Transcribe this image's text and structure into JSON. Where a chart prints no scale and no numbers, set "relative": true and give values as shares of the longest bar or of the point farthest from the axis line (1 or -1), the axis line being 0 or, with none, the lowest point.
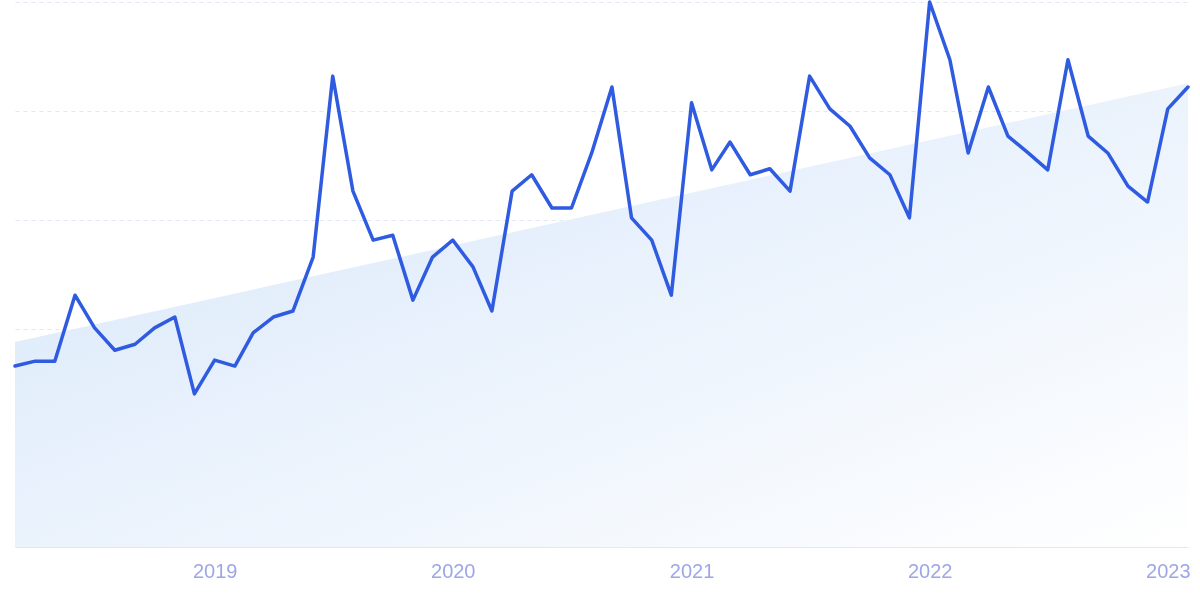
{
  "chart_data": {
    "type": "line",
    "relative": true,
    "grid": "y",
    "xlim": [
      "2018-03",
      "2023-02"
    ],
    "xticks": [
      "2019",
      "2020",
      "2021",
      "2022",
      "2023"
    ],
    "x": [
      "2018-03",
      "2018-04",
      "2018-05",
      "2018-06",
      "2018-07",
      "2018-08",
      "2018-09",
      "2018-10",
      "2018-11",
      "2018-12",
      "2019-01",
      "2019-02",
      "2019-03",
      "2019-04",
      "2019-05",
      "2019-06",
      "2019-07",
      "2019-08",
      "2019-09",
      "2019-10",
      "2019-11",
      "2019-12",
      "2020-01",
      "2020-02",
      "2020-03",
      "2020-04",
      "2020-05",
      "2020-06",
      "2020-07",
      "2020-08",
      "2020-09",
      "2020-10",
      "2020-11",
      "2020-12",
      "2021-01",
      "2021-02",
      "2021-03",
      "2021-04",
      "2021-05",
      "2021-06",
      "2021-07",
      "2021-08",
      "2021-09",
      "2021-10",
      "2021-11",
      "2021-12",
      "2022-01",
      "2022-02",
      "2022-03",
      "2022-04",
      "2022-05",
      "2022-06",
      "2022-07",
      "2022-08",
      "2022-09",
      "2022-10",
      "2022-11",
      "2022-12",
      "2023-01",
      "2023-02"
    ],
    "series": [
      {
        "type": "area",
        "color": "#d6e6fa",
        "x": [
          "2018-03",
          "2023-02"
        ],
        "values": [
          0.376,
          0.851
        ]
      },
      {
        "type": "line",
        "color": "#2f5be0",
        "values": [
          0.332,
          0.341,
          0.341,
          0.462,
          0.402,
          0.361,
          0.372,
          0.402,
          0.422,
          0.281,
          0.343,
          0.332,
          0.393,
          0.422,
          0.433,
          0.532,
          0.864,
          0.653,
          0.563,
          0.572,
          0.453,
          0.532,
          0.563,
          0.514,
          0.433,
          0.653,
          0.683,
          0.622,
          0.622,
          0.723,
          0.844,
          0.604,
          0.563,
          0.462,
          0.815,
          0.692,
          0.743,
          0.683,
          0.694,
          0.653,
          0.864,
          0.804,
          0.772,
          0.714,
          0.683,
          0.604,
          1,
          0.894,
          0.723,
          0.844,
          0.754,
          0.723,
          0.692,
          0.894,
          0.754,
          0.723,
          0.662,
          0.633,
          0.804,
          0.844
        ]
      }
    ]
  }
}
